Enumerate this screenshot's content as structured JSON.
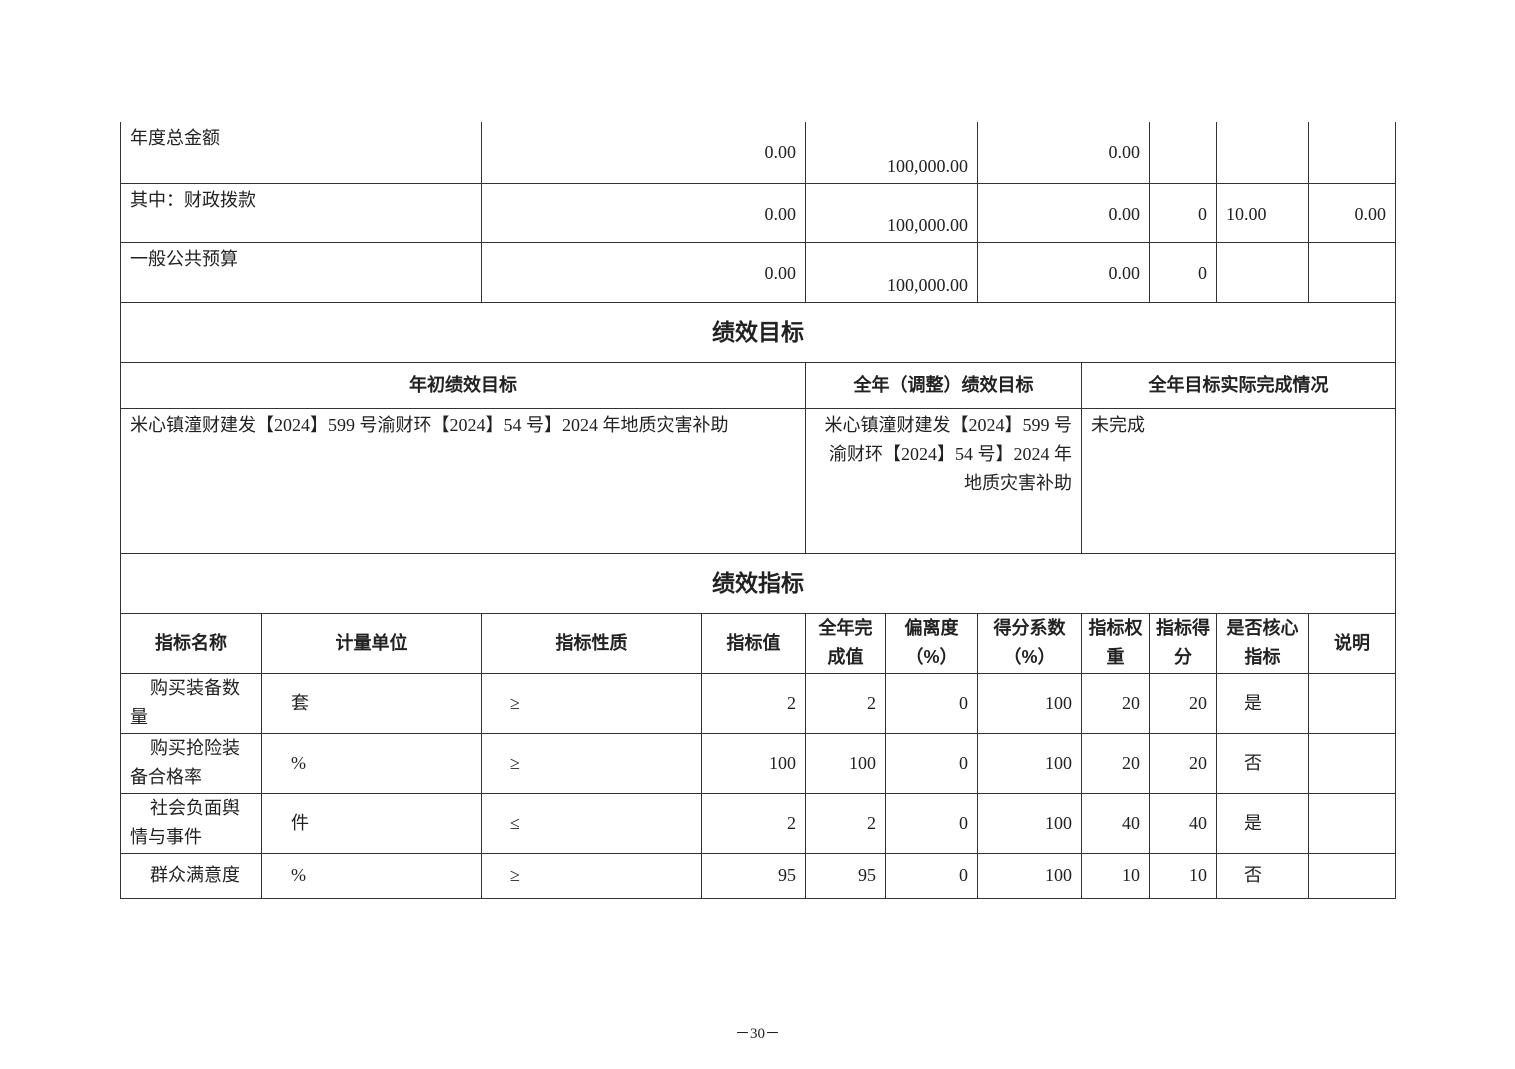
{
  "funding_rows": [
    {
      "label": "年度总金额",
      "v1": "0.00",
      "v2": "100,000.00",
      "v3": "0.00",
      "v4": "",
      "v5": "",
      "v6": ""
    },
    {
      "label": "其中：财政拨款",
      "v1": "0.00",
      "v2": "100,000.00",
      "v3": "0.00",
      "v4": "0",
      "v5": "10.00",
      "v6": "0.00"
    },
    {
      "label": "一般公共预算",
      "v1": "0.00",
      "v2": "100,000.00",
      "v3": "0.00",
      "v4": "0",
      "v5": "",
      "v6": ""
    }
  ],
  "goals": {
    "section_title": "绩效目标",
    "headers": [
      "年初绩效目标",
      "全年（调整）绩效目标",
      "全年目标实际完成情况"
    ],
    "initial": "米心镇潼财建发【2024】599 号渝财环【2024】54 号】2024 年地质灾害补助",
    "adjusted": "米心镇潼财建发【2024】599 号渝财环【2024】54 号】2024 年地质灾害补助",
    "actual": "未完成"
  },
  "indicators": {
    "section_title": "绩效指标",
    "headers": [
      "指标名称",
      "计量单位",
      "指标性质",
      "指标值",
      "全年完成值",
      "偏离度（%）",
      "得分系数（%）",
      "指标权重",
      "指标得分",
      "是否核心指标",
      "说明"
    ],
    "rows": [
      [
        "购买装备数量",
        "套",
        "≥",
        "2",
        "2",
        "0",
        "100",
        "20",
        "20",
        "是",
        ""
      ],
      [
        "购买抢险装备合格率",
        "%",
        "≥",
        "100",
        "100",
        "0",
        "100",
        "20",
        "20",
        "否",
        ""
      ],
      [
        "社会负面舆情与事件",
        "件",
        "≤",
        "2",
        "2",
        "0",
        "100",
        "40",
        "40",
        "是",
        ""
      ],
      [
        "群众满意度",
        "%",
        "≥",
        "95",
        "95",
        "0",
        "100",
        "10",
        "10",
        "否",
        ""
      ]
    ]
  },
  "page_number": "－30－"
}
